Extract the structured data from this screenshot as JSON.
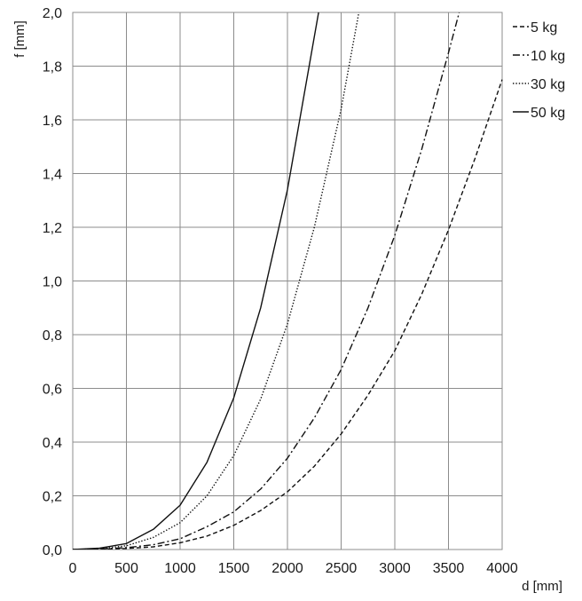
{
  "chart_data": {
    "type": "line",
    "xlabel": "d [mm]",
    "ylabel": "f [mm]",
    "xlim": [
      0,
      4000
    ],
    "ylim": [
      0,
      2.0
    ],
    "xticks": [
      0,
      500,
      1000,
      1500,
      2000,
      2500,
      3000,
      3500,
      4000
    ],
    "yticks": [
      0,
      0.2,
      0.4,
      0.6,
      0.8,
      1.0,
      1.2,
      1.4,
      1.6,
      1.8,
      2.0
    ],
    "ytick_labels": [
      "0,0",
      "0,2",
      "0,4",
      "0,6",
      "0,8",
      "1,0",
      "1,2",
      "1,4",
      "1,6",
      "1,8",
      "2,0"
    ],
    "grid": true,
    "legend_position": "right",
    "series": [
      {
        "name": "5 kg",
        "style": "dashed",
        "x": [
          0,
          250,
          500,
          750,
          1000,
          1250,
          1500,
          1750,
          2000,
          2250,
          2500,
          2750,
          3000,
          3250,
          3500,
          3750,
          4000
        ],
        "y": [
          0,
          0.001,
          0.004,
          0.01,
          0.025,
          0.05,
          0.09,
          0.145,
          0.215,
          0.31,
          0.43,
          0.575,
          0.74,
          0.95,
          1.19,
          1.46,
          1.75
        ]
      },
      {
        "name": "10 kg",
        "style": "dash-dot",
        "x": [
          0,
          250,
          500,
          750,
          1000,
          1250,
          1500,
          1750,
          2000,
          2250,
          2500,
          2750,
          3000,
          3250,
          3500,
          3600
        ],
        "y": [
          0,
          0.002,
          0.007,
          0.018,
          0.04,
          0.085,
          0.14,
          0.225,
          0.34,
          0.49,
          0.67,
          0.9,
          1.17,
          1.49,
          1.85,
          2.0
        ]
      },
      {
        "name": "30 kg",
        "style": "dotted",
        "x": [
          0,
          250,
          500,
          750,
          1000,
          1250,
          1500,
          1750,
          2000,
          2250,
          2500,
          2665
        ],
        "y": [
          0,
          0.003,
          0.014,
          0.045,
          0.1,
          0.2,
          0.35,
          0.56,
          0.84,
          1.2,
          1.64,
          2.0
        ]
      },
      {
        "name": "50 kg",
        "style": "solid",
        "x": [
          0,
          250,
          500,
          750,
          1000,
          1250,
          1500,
          1750,
          2000,
          2250,
          2290
        ],
        "y": [
          0,
          0.005,
          0.022,
          0.075,
          0.165,
          0.325,
          0.565,
          0.9,
          1.34,
          1.91,
          2.0
        ]
      }
    ]
  }
}
